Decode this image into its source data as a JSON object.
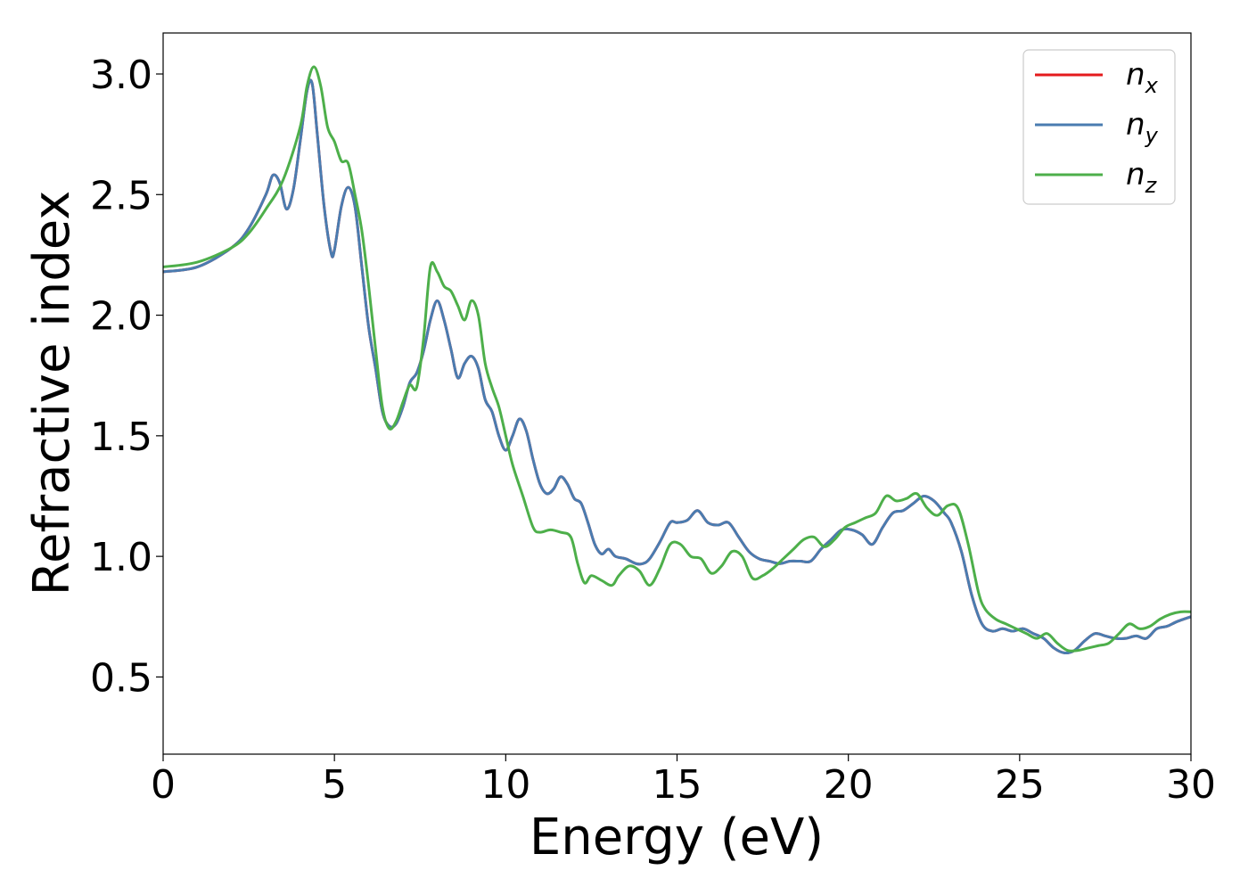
{
  "chart_data": {
    "type": "line",
    "xlabel": "Energy (eV)",
    "ylabel": "Refractive index",
    "xlim": [
      0,
      30
    ],
    "ylim": [
      0.18,
      3.17
    ],
    "xticks": [
      "0",
      "5",
      "10",
      "15",
      "20",
      "25",
      "30"
    ],
    "yticks": [
      "0.5",
      "1.0",
      "1.5",
      "2.0",
      "2.5",
      "3.0"
    ],
    "grid": false,
    "legend_position": "top-right",
    "series": [
      {
        "name": "n_x",
        "legend_base": "n",
        "legend_sub": "x",
        "color": "#e41a1c",
        "x": [
          0,
          1,
          2,
          2.5,
          3,
          3.2,
          3.4,
          3.6,
          3.8,
          4.0,
          4.2,
          4.35,
          4.5,
          4.7,
          4.9,
          5.0,
          5.2,
          5.4,
          5.6,
          5.8,
          6.0,
          6.2,
          6.4,
          6.6,
          6.8,
          7.0,
          7.2,
          7.4,
          7.6,
          7.8,
          8.0,
          8.2,
          8.4,
          8.6,
          8.8,
          9.0,
          9.2,
          9.4,
          9.6,
          9.8,
          10.0,
          10.2,
          10.4,
          10.6,
          10.8,
          11.0,
          11.2,
          11.4,
          11.6,
          11.8,
          12.0,
          12.2,
          12.4,
          12.6,
          12.8,
          13.0,
          13.2,
          13.5,
          13.8,
          14.0,
          14.2,
          14.5,
          14.8,
          15.0,
          15.3,
          15.6,
          15.9,
          16.2,
          16.5,
          16.8,
          17.1,
          17.4,
          17.7,
          18.0,
          18.3,
          18.6,
          18.9,
          19.2,
          19.5,
          19.8,
          20.1,
          20.4,
          20.7,
          21.0,
          21.3,
          21.6,
          21.9,
          22.2,
          22.5,
          22.8,
          23.0,
          23.3,
          23.6,
          23.9,
          24.2,
          24.5,
          24.8,
          25.1,
          25.4,
          25.7,
          26.0,
          26.3,
          26.6,
          26.9,
          27.2,
          27.5,
          27.8,
          28.1,
          28.4,
          28.7,
          29.0,
          29.3,
          29.6,
          30.0
        ],
        "y": [
          2.18,
          2.2,
          2.28,
          2.36,
          2.5,
          2.58,
          2.55,
          2.44,
          2.52,
          2.72,
          2.93,
          2.96,
          2.75,
          2.45,
          2.26,
          2.27,
          2.45,
          2.53,
          2.45,
          2.2,
          1.95,
          1.78,
          1.6,
          1.54,
          1.55,
          1.62,
          1.72,
          1.76,
          1.85,
          1.98,
          2.06,
          1.98,
          1.86,
          1.74,
          1.8,
          1.83,
          1.78,
          1.65,
          1.6,
          1.5,
          1.44,
          1.5,
          1.57,
          1.52,
          1.4,
          1.3,
          1.26,
          1.28,
          1.33,
          1.3,
          1.24,
          1.22,
          1.14,
          1.05,
          1.01,
          1.03,
          1.0,
          0.99,
          0.97,
          0.97,
          0.99,
          1.06,
          1.14,
          1.14,
          1.15,
          1.19,
          1.14,
          1.13,
          1.14,
          1.08,
          1.02,
          0.99,
          0.98,
          0.97,
          0.98,
          0.98,
          0.98,
          1.03,
          1.07,
          1.11,
          1.11,
          1.09,
          1.05,
          1.12,
          1.18,
          1.19,
          1.22,
          1.25,
          1.23,
          1.18,
          1.14,
          1.02,
          0.84,
          0.72,
          0.69,
          0.7,
          0.69,
          0.7,
          0.68,
          0.66,
          0.62,
          0.6,
          0.61,
          0.65,
          0.68,
          0.67,
          0.66,
          0.66,
          0.67,
          0.66,
          0.7,
          0.71,
          0.73,
          0.75
        ]
      },
      {
        "name": "n_y",
        "legend_base": "n",
        "legend_sub": "y",
        "color": "#4a7cb0",
        "x": [
          0,
          1,
          2,
          2.5,
          3,
          3.2,
          3.4,
          3.6,
          3.8,
          4.0,
          4.2,
          4.35,
          4.5,
          4.7,
          4.9,
          5.0,
          5.2,
          5.4,
          5.6,
          5.8,
          6.0,
          6.2,
          6.4,
          6.6,
          6.8,
          7.0,
          7.2,
          7.4,
          7.6,
          7.8,
          8.0,
          8.2,
          8.4,
          8.6,
          8.8,
          9.0,
          9.2,
          9.4,
          9.6,
          9.8,
          10.0,
          10.2,
          10.4,
          10.6,
          10.8,
          11.0,
          11.2,
          11.4,
          11.6,
          11.8,
          12.0,
          12.2,
          12.4,
          12.6,
          12.8,
          13.0,
          13.2,
          13.5,
          13.8,
          14.0,
          14.2,
          14.5,
          14.8,
          15.0,
          15.3,
          15.6,
          15.9,
          16.2,
          16.5,
          16.8,
          17.1,
          17.4,
          17.7,
          18.0,
          18.3,
          18.6,
          18.9,
          19.2,
          19.5,
          19.8,
          20.1,
          20.4,
          20.7,
          21.0,
          21.3,
          21.6,
          21.9,
          22.2,
          22.5,
          22.8,
          23.0,
          23.3,
          23.6,
          23.9,
          24.2,
          24.5,
          24.8,
          25.1,
          25.4,
          25.7,
          26.0,
          26.3,
          26.6,
          26.9,
          27.2,
          27.5,
          27.8,
          28.1,
          28.4,
          28.7,
          29.0,
          29.3,
          29.6,
          30.0
        ],
        "y": [
          2.18,
          2.2,
          2.28,
          2.36,
          2.5,
          2.58,
          2.55,
          2.44,
          2.52,
          2.72,
          2.93,
          2.96,
          2.75,
          2.45,
          2.26,
          2.27,
          2.45,
          2.53,
          2.45,
          2.2,
          1.95,
          1.78,
          1.6,
          1.54,
          1.55,
          1.62,
          1.72,
          1.76,
          1.85,
          1.98,
          2.06,
          1.98,
          1.86,
          1.74,
          1.8,
          1.83,
          1.78,
          1.65,
          1.6,
          1.5,
          1.44,
          1.5,
          1.57,
          1.52,
          1.4,
          1.3,
          1.26,
          1.28,
          1.33,
          1.3,
          1.24,
          1.22,
          1.14,
          1.05,
          1.01,
          1.03,
          1.0,
          0.99,
          0.97,
          0.97,
          0.99,
          1.06,
          1.14,
          1.14,
          1.15,
          1.19,
          1.14,
          1.13,
          1.14,
          1.08,
          1.02,
          0.99,
          0.98,
          0.97,
          0.98,
          0.98,
          0.98,
          1.03,
          1.07,
          1.11,
          1.11,
          1.09,
          1.05,
          1.12,
          1.18,
          1.19,
          1.22,
          1.25,
          1.23,
          1.18,
          1.14,
          1.02,
          0.84,
          0.72,
          0.69,
          0.7,
          0.69,
          0.7,
          0.68,
          0.66,
          0.62,
          0.6,
          0.61,
          0.65,
          0.68,
          0.67,
          0.66,
          0.66,
          0.67,
          0.66,
          0.7,
          0.71,
          0.73,
          0.75
        ]
      },
      {
        "name": "n_z",
        "legend_base": "n",
        "legend_sub": "z",
        "color": "#4daf4a",
        "x": [
          0,
          1,
          2,
          2.5,
          3,
          3.5,
          4.0,
          4.2,
          4.4,
          4.6,
          4.8,
          5.0,
          5.2,
          5.4,
          5.6,
          5.8,
          6.0,
          6.2,
          6.4,
          6.6,
          6.8,
          7.0,
          7.2,
          7.4,
          7.6,
          7.8,
          8.0,
          8.2,
          8.4,
          8.6,
          8.8,
          9.0,
          9.2,
          9.4,
          9.6,
          9.8,
          10.0,
          10.2,
          10.5,
          10.8,
          11.0,
          11.3,
          11.6,
          11.9,
          12.1,
          12.3,
          12.5,
          12.8,
          13.1,
          13.3,
          13.6,
          13.9,
          14.2,
          14.5,
          14.8,
          15.1,
          15.4,
          15.7,
          16.0,
          16.3,
          16.6,
          16.9,
          17.2,
          17.5,
          17.8,
          18.1,
          18.4,
          18.7,
          19.0,
          19.3,
          19.6,
          19.9,
          20.2,
          20.5,
          20.8,
          21.1,
          21.4,
          21.7,
          22.0,
          22.3,
          22.6,
          22.9,
          23.2,
          23.5,
          23.8,
          24.0,
          24.3,
          24.6,
          24.9,
          25.2,
          25.5,
          25.8,
          26.1,
          26.4,
          26.7,
          27.0,
          27.3,
          27.6,
          27.9,
          28.2,
          28.5,
          28.8,
          29.1,
          29.4,
          29.7,
          30.0
        ],
        "y": [
          2.2,
          2.22,
          2.28,
          2.34,
          2.44,
          2.56,
          2.78,
          2.95,
          3.03,
          2.95,
          2.78,
          2.72,
          2.64,
          2.63,
          2.5,
          2.35,
          2.12,
          1.86,
          1.62,
          1.53,
          1.56,
          1.64,
          1.71,
          1.7,
          1.9,
          2.2,
          2.18,
          2.12,
          2.1,
          2.04,
          1.98,
          2.06,
          2.0,
          1.8,
          1.7,
          1.62,
          1.5,
          1.38,
          1.25,
          1.12,
          1.1,
          1.11,
          1.1,
          1.08,
          0.97,
          0.89,
          0.92,
          0.9,
          0.88,
          0.92,
          0.96,
          0.94,
          0.88,
          0.95,
          1.05,
          1.05,
          1.0,
          0.99,
          0.93,
          0.96,
          1.02,
          1.0,
          0.91,
          0.92,
          0.95,
          0.99,
          1.03,
          1.07,
          1.08,
          1.04,
          1.07,
          1.12,
          1.14,
          1.16,
          1.18,
          1.25,
          1.23,
          1.24,
          1.26,
          1.2,
          1.17,
          1.21,
          1.2,
          1.05,
          0.85,
          0.78,
          0.74,
          0.72,
          0.7,
          0.68,
          0.66,
          0.68,
          0.64,
          0.61,
          0.61,
          0.62,
          0.63,
          0.64,
          0.68,
          0.72,
          0.7,
          0.71,
          0.74,
          0.76,
          0.77,
          0.77
        ]
      }
    ]
  }
}
